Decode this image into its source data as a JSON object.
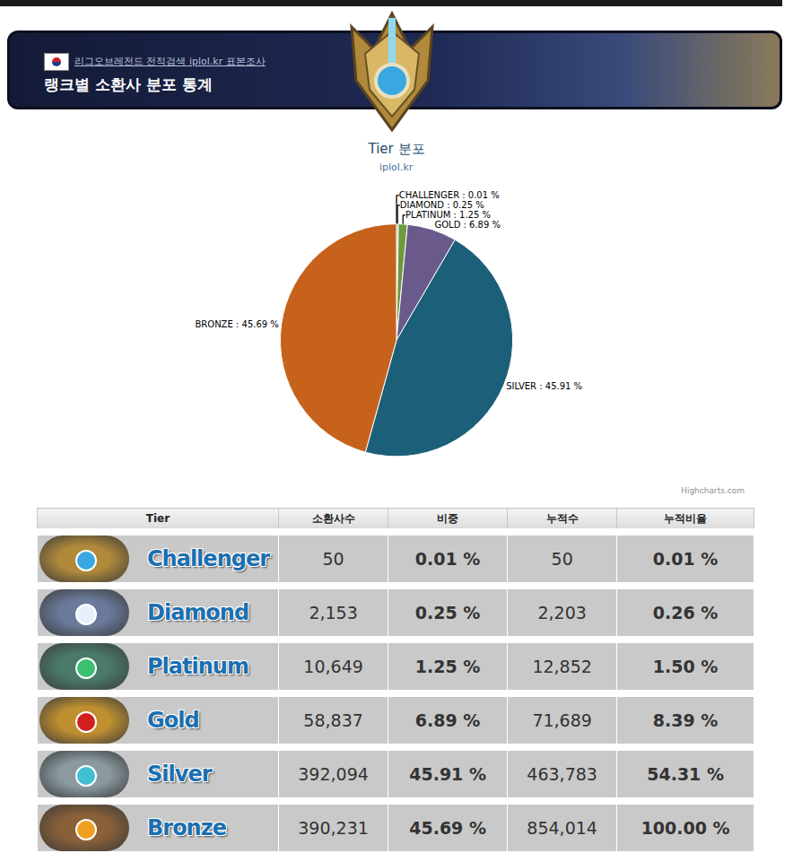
{
  "header": {
    "site_line": "리그오브레전드 전적검색 iplol.kr 표본조사",
    "title": "랭크별 소환사 분포 통계"
  },
  "chart_data": {
    "type": "pie",
    "title": "Tier 분포",
    "subtitle": "iplol.kr",
    "categories": [
      "CHALLENGER",
      "DIAMOND",
      "PLATINUM",
      "GOLD",
      "SILVER",
      "BRONZE"
    ],
    "values": [
      0.01,
      0.25,
      1.25,
      6.89,
      45.91,
      45.69
    ],
    "value_labels": [
      "CHALLENGER : 0.01 %",
      "DIAMOND : 0.25 %",
      "PLATINUM : 1.25 %",
      "GOLD : 6.89 %",
      "SILVER : 45.91 %",
      "BRONZE : 45.69 %"
    ],
    "colors": [
      "#d8d8d8",
      "#4a8ab0",
      "#6e9a3c",
      "#6a5a8c",
      "#1c5f78",
      "#c6621c"
    ],
    "data_labels": true
  },
  "credit": "Highcharts.com",
  "table": {
    "header": [
      "Tier",
      "소환사수",
      "비중",
      "누적수",
      "누적비율"
    ],
    "rows": [
      [
        "Challenger",
        "50",
        "0.01 %",
        "50",
        "0.01 %"
      ],
      [
        "Diamond",
        "2,153",
        "0.25 %",
        "2,203",
        "0.26 %"
      ],
      [
        "Platinum",
        "10,649",
        "1.25 %",
        "12,852",
        "1.50 %"
      ],
      [
        "Gold",
        "58,837",
        "6.89 %",
        "71,689",
        "8.39 %"
      ],
      [
        "Silver",
        "392,094",
        "45.91 %",
        "463,783",
        "54.31 %"
      ],
      [
        "Bronze",
        "390,231",
        "45.69 %",
        "854,014",
        "100.00 %"
      ]
    ]
  }
}
